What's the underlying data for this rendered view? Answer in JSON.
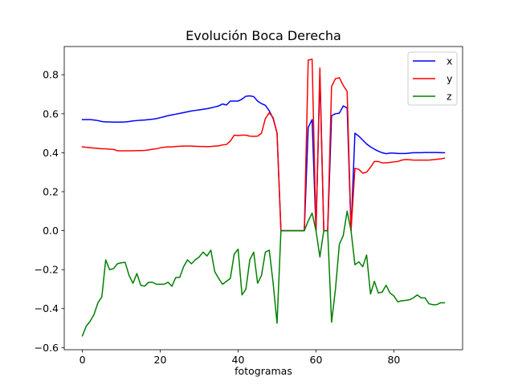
{
  "chart_data": {
    "type": "line",
    "title": "Evolución Boca Derecha",
    "xlabel": "fotogramas",
    "ylabel": "",
    "xlim": [
      -4.65,
      97.65
    ],
    "ylim": [
      -0.611,
      0.945
    ],
    "xticks": [
      0,
      20,
      40,
      60,
      80
    ],
    "yticks": [
      -0.6,
      -0.4,
      -0.2,
      0.0,
      0.2,
      0.4,
      0.6,
      0.8
    ],
    "xtick_labels": [
      "0",
      "20",
      "40",
      "60",
      "80"
    ],
    "ytick_labels": [
      "−0.6",
      "−0.4",
      "−0.2",
      "0.0",
      "0.2",
      "0.4",
      "0.6",
      "0.8"
    ],
    "legend_position": "top-right",
    "grid": false,
    "x": [
      0,
      1,
      2,
      3,
      4,
      5,
      6,
      7,
      8,
      9,
      10,
      11,
      12,
      13,
      14,
      15,
      16,
      17,
      18,
      19,
      20,
      21,
      22,
      23,
      24,
      25,
      26,
      27,
      28,
      29,
      30,
      31,
      32,
      33,
      34,
      35,
      36,
      37,
      38,
      39,
      40,
      41,
      42,
      43,
      44,
      45,
      46,
      47,
      48,
      49,
      50,
      51,
      52,
      53,
      54,
      55,
      56,
      57,
      58,
      59,
      60,
      61,
      62,
      63,
      64,
      65,
      66,
      67,
      68,
      69,
      70,
      71,
      72,
      73,
      74,
      75,
      76,
      77,
      78,
      79,
      80,
      81,
      82,
      83,
      84,
      85,
      86,
      87,
      88,
      89,
      90,
      91,
      92,
      93
    ],
    "series": [
      {
        "name": "x",
        "color": "#0000ff",
        "values": [
          0.57,
          0.57,
          0.57,
          0.568,
          0.565,
          0.56,
          0.558,
          0.558,
          0.557,
          0.557,
          0.557,
          0.558,
          0.56,
          0.563,
          0.565,
          0.567,
          0.568,
          0.57,
          0.572,
          0.575,
          0.58,
          0.585,
          0.59,
          0.594,
          0.598,
          0.602,
          0.606,
          0.61,
          0.614,
          0.617,
          0.62,
          0.623,
          0.626,
          0.63,
          0.635,
          0.64,
          0.65,
          0.645,
          0.665,
          0.665,
          0.665,
          0.675,
          0.69,
          0.692,
          0.688,
          0.665,
          0.652,
          0.643,
          0.615,
          0.575,
          0.5,
          0.0,
          0.0,
          0.0,
          0.0,
          0.0,
          0.0,
          0.0,
          0.53,
          0.57,
          0.0,
          0.8,
          0.0,
          0.0,
          0.59,
          0.6,
          0.603,
          0.64,
          0.63,
          0.0,
          0.5,
          0.485,
          0.465,
          0.445,
          0.43,
          0.418,
          0.408,
          0.4,
          0.395,
          0.398,
          0.398,
          0.396,
          0.396,
          0.396,
          0.398,
          0.4,
          0.4,
          0.4,
          0.401,
          0.401,
          0.401,
          0.401,
          0.4,
          0.4
        ]
      },
      {
        "name": "y",
        "color": "#ff0000",
        "values": [
          0.43,
          0.428,
          0.426,
          0.424,
          0.422,
          0.42,
          0.42,
          0.418,
          0.417,
          0.41,
          0.41,
          0.41,
          0.41,
          0.41,
          0.411,
          0.411,
          0.412,
          0.414,
          0.418,
          0.42,
          0.425,
          0.428,
          0.43,
          0.43,
          0.432,
          0.433,
          0.434,
          0.434,
          0.434,
          0.433,
          0.432,
          0.432,
          0.431,
          0.432,
          0.434,
          0.435,
          0.44,
          0.442,
          0.46,
          0.49,
          0.488,
          0.49,
          0.49,
          0.485,
          0.484,
          0.485,
          0.5,
          0.575,
          0.605,
          0.58,
          0.5,
          0.0,
          0.0,
          0.0,
          0.0,
          0.0,
          0.0,
          0.0,
          0.875,
          0.88,
          0.0,
          0.835,
          0.0,
          0.0,
          0.74,
          0.78,
          0.785,
          0.745,
          0.715,
          0.0,
          0.32,
          0.315,
          0.295,
          0.3,
          0.325,
          0.355,
          0.355,
          0.348,
          0.348,
          0.35,
          0.353,
          0.355,
          0.362,
          0.365,
          0.364,
          0.362,
          0.362,
          0.362,
          0.362,
          0.362,
          0.364,
          0.366,
          0.368,
          0.372
        ]
      },
      {
        "name": "z",
        "color": "#008000",
        "values": [
          -0.54,
          -0.49,
          -0.465,
          -0.43,
          -0.37,
          -0.34,
          -0.15,
          -0.2,
          -0.195,
          -0.17,
          -0.165,
          -0.163,
          -0.23,
          -0.27,
          -0.22,
          -0.28,
          -0.285,
          -0.265,
          -0.265,
          -0.275,
          -0.275,
          -0.275,
          -0.265,
          -0.285,
          -0.24,
          -0.24,
          -0.185,
          -0.15,
          -0.17,
          -0.15,
          -0.135,
          -0.11,
          -0.13,
          -0.1,
          -0.21,
          -0.245,
          -0.275,
          -0.26,
          -0.245,
          -0.12,
          -0.095,
          -0.33,
          -0.3,
          -0.15,
          -0.11,
          -0.27,
          -0.23,
          -0.11,
          -0.1,
          -0.27,
          -0.475,
          0.0,
          0.0,
          0.0,
          0.0,
          0.0,
          0.0,
          0.0,
          0.05,
          0.09,
          0.0,
          -0.135,
          0.0,
          0.0,
          -0.47,
          -0.3,
          -0.07,
          -0.025,
          0.1,
          0.0,
          -0.175,
          -0.16,
          -0.185,
          -0.125,
          -0.325,
          -0.26,
          -0.32,
          -0.315,
          -0.28,
          -0.32,
          -0.335,
          -0.365,
          -0.36,
          -0.358,
          -0.355,
          -0.345,
          -0.33,
          -0.345,
          -0.345,
          -0.375,
          -0.38,
          -0.38,
          -0.37,
          -0.37
        ]
      }
    ]
  }
}
